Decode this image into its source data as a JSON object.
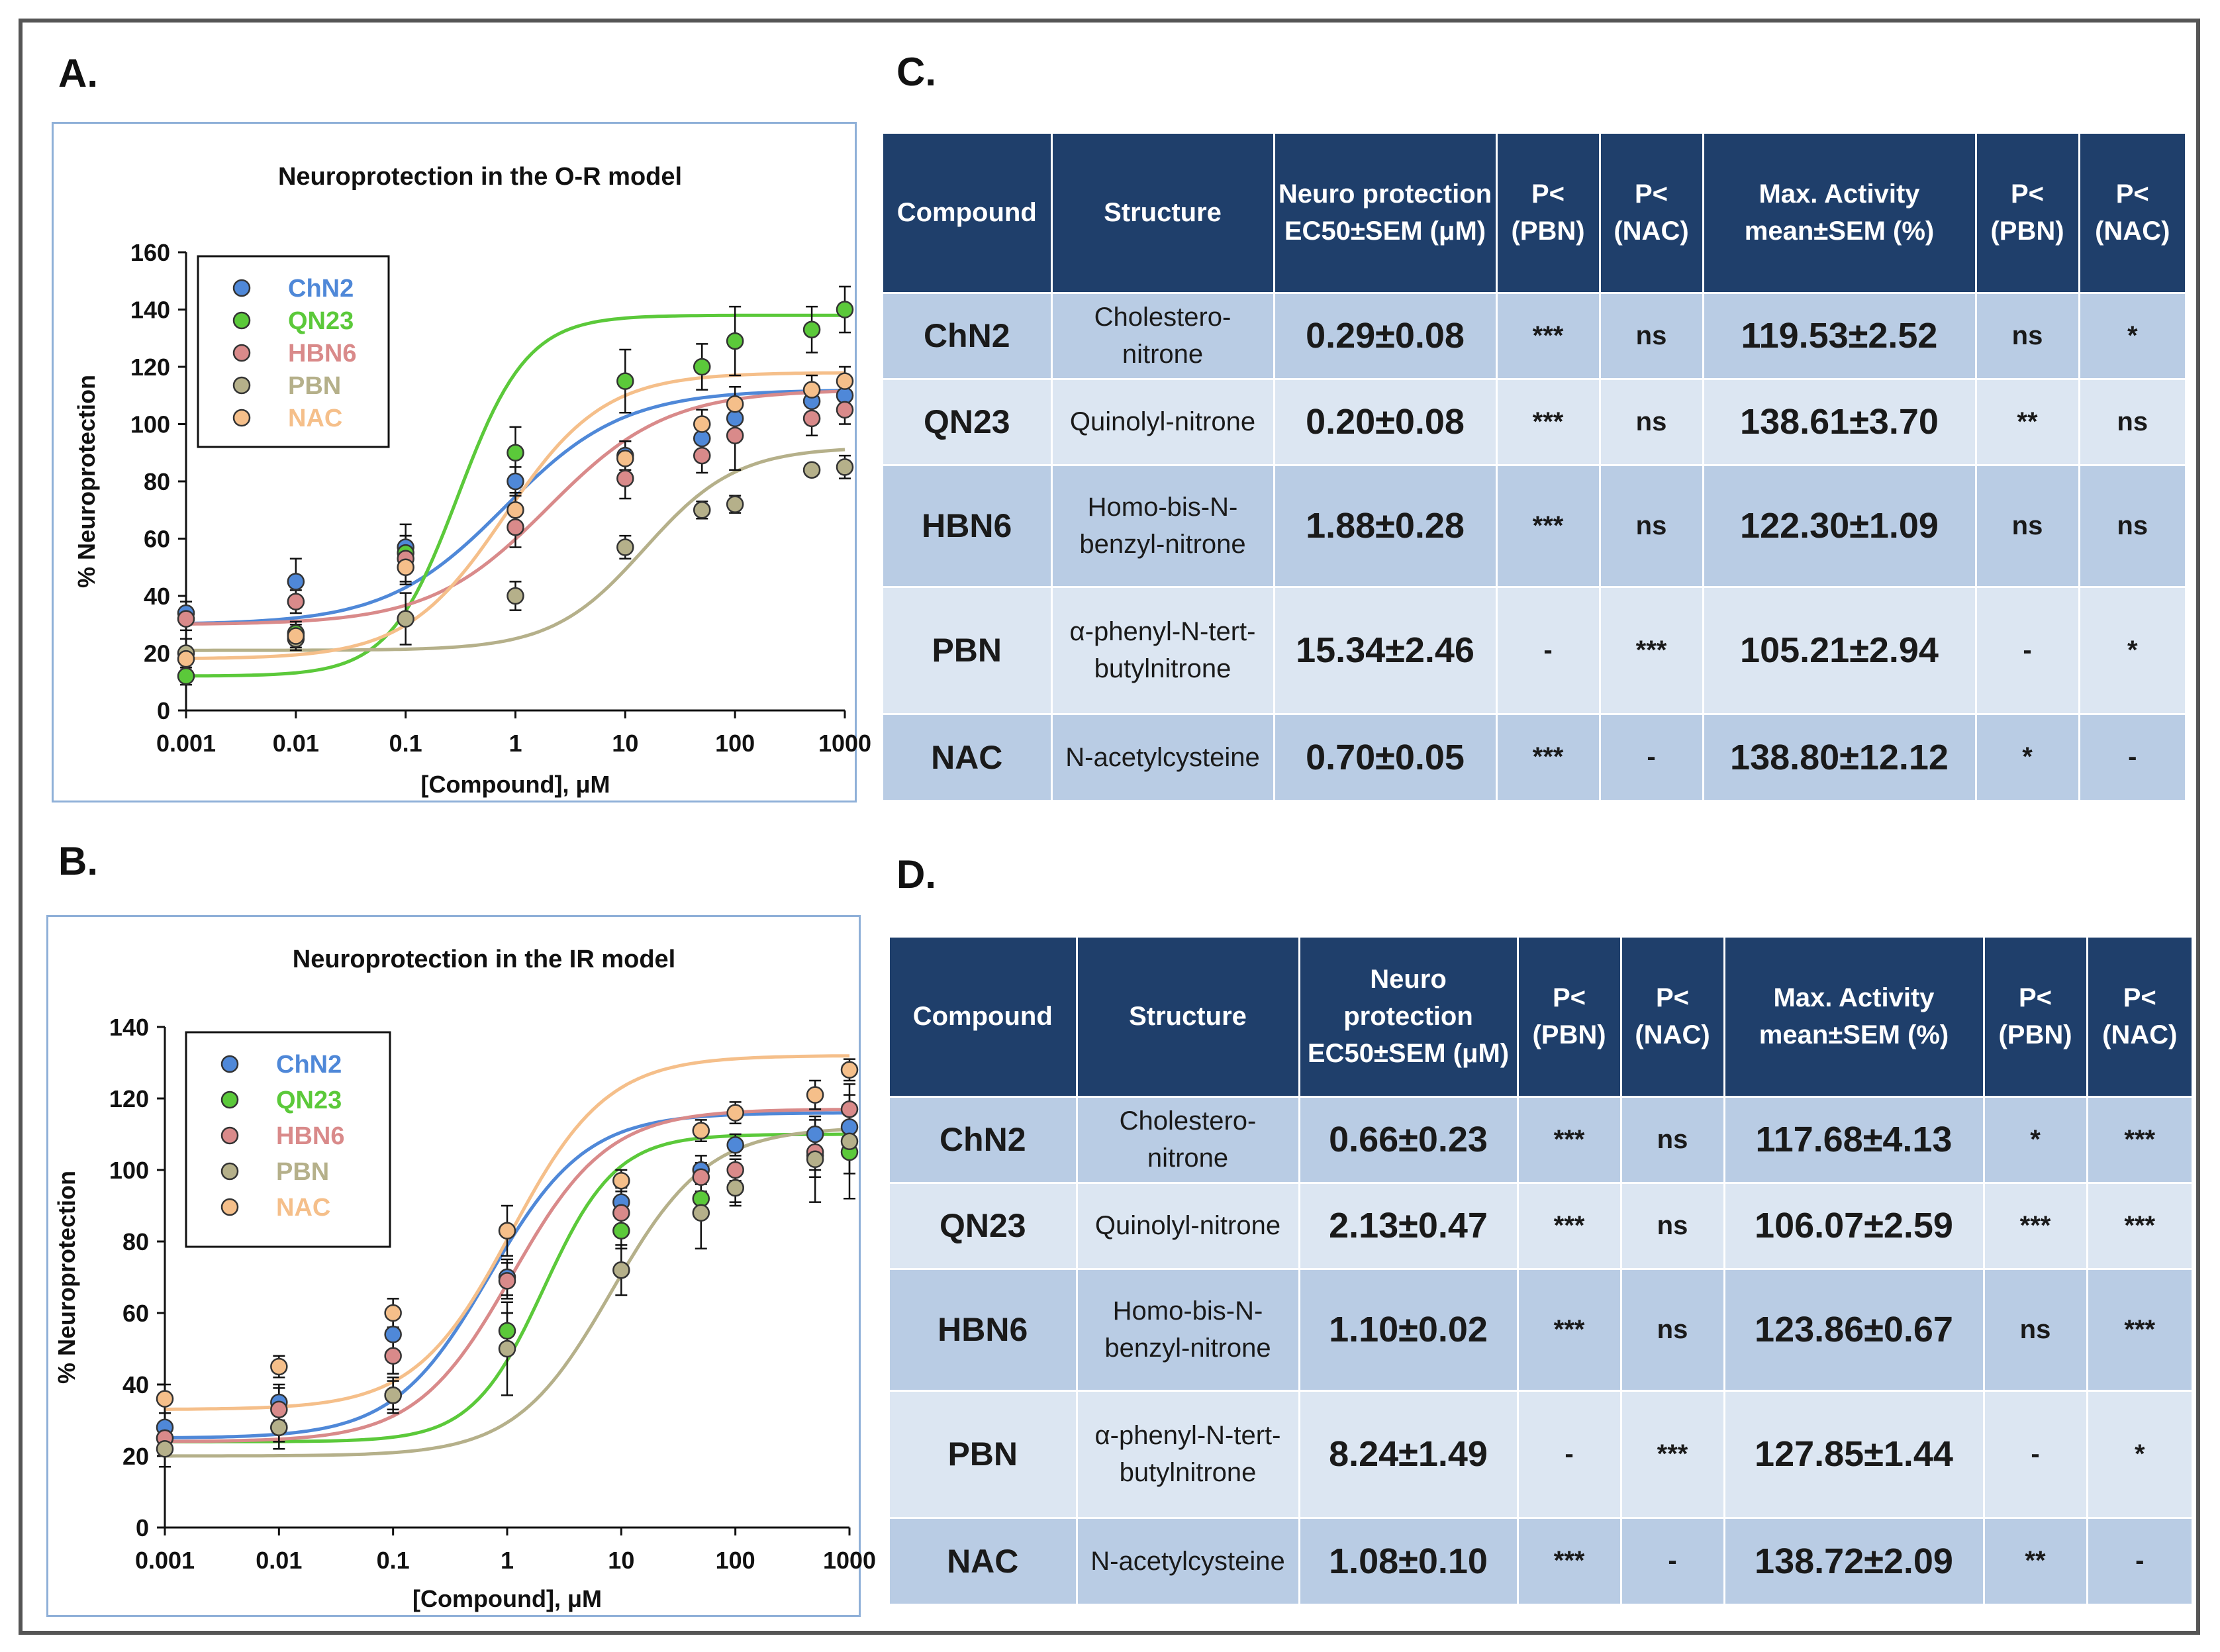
{
  "panels": {
    "A": "A.",
    "B": "B.",
    "C": "C.",
    "D": "D."
  },
  "colors": {
    "ChN2": "#4f88d8",
    "QN23": "#5bc93a",
    "HBN6": "#d98a8a",
    "PBN": "#b5b08a",
    "NAC": "#f5bf8a",
    "table_header": "#1f3f6b",
    "row_dark": "#b9cce4",
    "row_light": "#dce6f2"
  },
  "chart_data": [
    {
      "type": "scatter",
      "title": "Neuroprotection in the O-R model",
      "xlabel": "[Compound], μM",
      "ylabel": "% Neuroprotection",
      "xscale": "log",
      "x": [
        0.001,
        0.01,
        0.1,
        1,
        10,
        50,
        100,
        500,
        1000
      ],
      "xticks": [
        "0.001",
        "0.01",
        "0.1",
        "1",
        "10",
        "100",
        "1000"
      ],
      "xtick_values": [
        0.001,
        0.01,
        0.1,
        1,
        10,
        100,
        1000
      ],
      "ylim": [
        0,
        160
      ],
      "yticks": [
        0,
        20,
        40,
        60,
        80,
        100,
        120,
        140,
        160
      ],
      "legend": "top-left",
      "series": [
        {
          "name": "ChN2",
          "values": [
            34,
            45,
            57,
            80,
            89,
            95,
            102,
            108,
            110
          ],
          "errors": [
            4,
            8,
            8,
            5,
            5,
            5,
            5,
            5,
            5
          ],
          "curve": {
            "bottom": 30,
            "top": 112,
            "ec50": 0.8,
            "hill": 0.35
          }
        },
        {
          "name": "QN23",
          "values": [
            12,
            27,
            55,
            90,
            115,
            120,
            129,
            133,
            140
          ],
          "errors": [
            3,
            4,
            6,
            9,
            11,
            8,
            12,
            8,
            8
          ],
          "curve": {
            "bottom": 12,
            "top": 138,
            "ec50": 0.3,
            "hill": 0.6
          }
        },
        {
          "name": "HBN6",
          "values": [
            32,
            38,
            53,
            64,
            81,
            89,
            96,
            102,
            105
          ],
          "errors": [
            4,
            4,
            8,
            7,
            7,
            6,
            12,
            6,
            5
          ],
          "curve": {
            "bottom": 30,
            "top": 112,
            "ec50": 2.0,
            "hill": 0.35
          }
        },
        {
          "name": "PBN",
          "values": [
            20,
            25,
            32,
            40,
            57,
            70,
            72,
            84,
            85
          ],
          "errors": [
            5,
            4,
            9,
            5,
            4,
            3,
            3,
            2,
            4
          ],
          "curve": {
            "bottom": 21,
            "top": 92,
            "ec50": 15,
            "hill": 0.45
          }
        },
        {
          "name": "NAC",
          "values": [
            18,
            26,
            50,
            70,
            88,
            100,
            107,
            112,
            115
          ],
          "errors": [
            4,
            4,
            6,
            6,
            6,
            5,
            6,
            5,
            5
          ],
          "curve": {
            "bottom": 18,
            "top": 118,
            "ec50": 0.8,
            "hill": 0.42
          }
        }
      ]
    },
    {
      "type": "scatter",
      "title": "Neuroprotection in the IR model",
      "xlabel": "[Compound], μM",
      "ylabel": "% Neuroprotection",
      "xscale": "log",
      "x": [
        0.001,
        0.01,
        0.1,
        1,
        10,
        50,
        100,
        500,
        1000
      ],
      "xticks": [
        "0.001",
        "0.01",
        "0.1",
        "1",
        "10",
        "100",
        "1000"
      ],
      "xtick_values": [
        0.001,
        0.01,
        0.1,
        1,
        10,
        100,
        1000
      ],
      "ylim": [
        0,
        140
      ],
      "yticks": [
        0,
        20,
        40,
        60,
        80,
        100,
        120,
        140
      ],
      "legend": "top-left",
      "series": [
        {
          "name": "ChN2",
          "values": [
            28,
            35,
            54,
            70,
            91,
            100,
            107,
            110,
            112
          ],
          "errors": [
            4,
            5,
            5,
            5,
            4,
            4,
            3,
            4,
            4
          ],
          "curve": {
            "bottom": 25,
            "top": 116,
            "ec50": 0.7,
            "hill": 0.45
          }
        },
        {
          "name": "QN23",
          "values": [
            25,
            28,
            37,
            55,
            83,
            92,
            95,
            104,
            105
          ],
          "errors": [
            3,
            4,
            4,
            5,
            5,
            5,
            4,
            6,
            6
          ],
          "curve": {
            "bottom": 24,
            "top": 110,
            "ec50": 2.1,
            "hill": 0.6
          }
        },
        {
          "name": "HBN6",
          "values": [
            25,
            33,
            48,
            69,
            88,
            98,
            100,
            105,
            117
          ],
          "errors": [
            4,
            6,
            5,
            5,
            4,
            4,
            3,
            5,
            4
          ],
          "curve": {
            "bottom": 24,
            "top": 117,
            "ec50": 1.1,
            "hill": 0.45
          }
        },
        {
          "name": "PBN",
          "values": [
            22,
            28,
            37,
            50,
            72,
            88,
            95,
            103,
            108
          ],
          "errors": [
            5,
            6,
            5,
            13,
            7,
            10,
            5,
            12,
            16
          ],
          "curve": {
            "bottom": 20,
            "top": 112,
            "ec50": 8.2,
            "hill": 0.45
          }
        },
        {
          "name": "NAC",
          "values": [
            36,
            45,
            60,
            83,
            97,
            111,
            116,
            121,
            128
          ],
          "errors": [
            4,
            3,
            4,
            7,
            3,
            3,
            3,
            4,
            3
          ],
          "curve": {
            "bottom": 33,
            "top": 132,
            "ec50": 1.08,
            "hill": 0.45
          }
        }
      ]
    }
  ],
  "tables": {
    "headers": [
      "Compound",
      "Structure",
      "Neuro protection EC50±SEM (μM)",
      "P< (PBN)",
      "P< (NAC)",
      "Max. Activity mean±SEM (%)",
      "P< (PBN)",
      "P< (NAC)"
    ],
    "C": [
      [
        "ChN2",
        "Cholestero-nitrone",
        "0.29±0.08",
        "***",
        "ns",
        "119.53±2.52",
        "ns",
        "*"
      ],
      [
        "QN23",
        "Quinolyl-nitrone",
        "0.20±0.08",
        "***",
        "ns",
        "138.61±3.70",
        "**",
        "ns"
      ],
      [
        "HBN6",
        "Homo-bis-N-benzyl-nitrone",
        "1.88±0.28",
        "***",
        "ns",
        "122.30±1.09",
        "ns",
        "ns"
      ],
      [
        "PBN",
        "α-phenyl-N-tert-butylnitrone",
        "15.34±2.46",
        "-",
        "***",
        "105.21±2.94",
        "-",
        "*"
      ],
      [
        "NAC",
        "N-acetylcysteine",
        "0.70±0.05",
        "***",
        "-",
        "138.80±12.12",
        "*",
        "-"
      ]
    ],
    "D": [
      [
        "ChN2",
        "Cholestero-nitrone",
        "0.66±0.23",
        "***",
        "ns",
        "117.68±4.13",
        "*",
        "***"
      ],
      [
        "QN23",
        "Quinolyl-nitrone",
        "2.13±0.47",
        "***",
        "ns",
        "106.07±2.59",
        "***",
        "***"
      ],
      [
        "HBN6",
        "Homo-bis-N-benzyl-nitrone",
        "1.10±0.02",
        "***",
        "ns",
        "123.86±0.67",
        "ns",
        "***"
      ],
      [
        "PBN",
        "α-phenyl-N-tert-butylnitrone",
        "8.24±1.49",
        "-",
        "***",
        "127.85±1.44",
        "-",
        "*"
      ],
      [
        "NAC",
        "N-acetylcysteine",
        "1.08±0.10",
        "***",
        "-",
        "138.72±2.09",
        "**",
        "-"
      ]
    ]
  }
}
